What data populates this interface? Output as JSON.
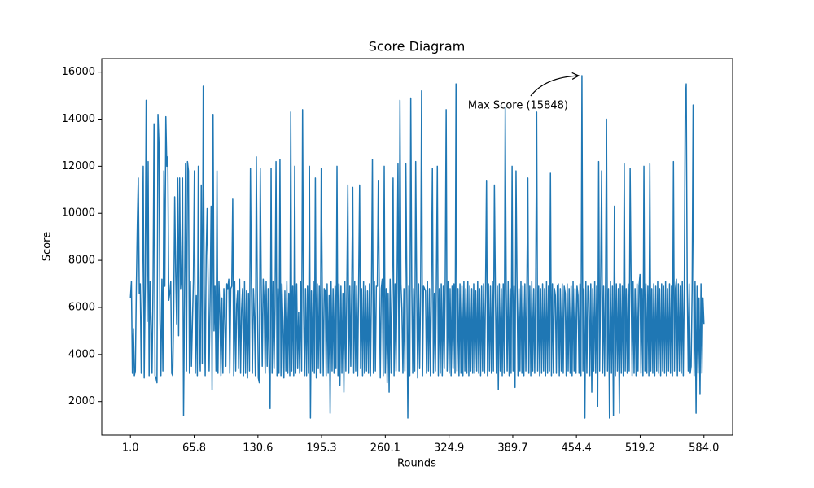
{
  "chart_data": {
    "type": "line",
    "title": "Score Diagram",
    "x_label": "Rounds",
    "y_label": "Score",
    "color": "#1f77b4",
    "x": [
      1,
      2,
      3,
      4,
      5,
      6,
      7,
      8,
      9,
      10,
      11,
      12,
      13,
      14,
      15,
      16,
      17,
      18,
      19,
      20,
      21,
      22,
      23,
      24,
      25,
      26,
      27,
      28,
      29,
      30,
      31,
      32,
      33,
      34,
      35,
      36,
      37,
      38,
      39,
      40,
      41,
      42,
      43,
      44,
      45,
      46,
      47,
      48,
      49,
      50,
      51,
      52,
      53,
      54,
      55,
      56,
      57,
      58,
      59,
      60,
      61,
      62,
      63,
      64,
      65,
      66,
      67,
      68,
      69,
      70,
      71,
      72,
      73,
      74,
      75,
      76,
      77,
      78,
      79,
      80,
      81,
      82,
      83,
      84,
      85,
      86,
      87,
      88,
      89,
      90,
      91,
      92,
      93,
      94,
      95,
      96,
      97,
      98,
      99,
      100,
      101,
      102,
      103,
      104,
      105,
      106,
      107,
      108,
      109,
      110,
      111,
      112,
      113,
      114,
      115,
      116,
      117,
      118,
      119,
      120,
      121,
      122,
      123,
      124,
      125,
      126,
      127,
      128,
      129,
      130,
      131,
      132,
      133,
      134,
      135,
      136,
      137,
      138,
      139,
      140,
      141,
      142,
      143,
      144,
      145,
      146,
      147,
      148,
      149,
      150,
      151,
      152,
      153,
      154,
      155,
      156,
      157,
      158,
      159,
      160,
      161,
      162,
      163,
      164,
      165,
      166,
      167,
      168,
      169,
      170,
      171,
      172,
      173,
      174,
      175,
      176,
      177,
      178,
      179,
      180,
      181,
      182,
      183,
      184,
      185,
      186,
      187,
      188,
      189,
      190,
      191,
      192,
      193,
      194,
      195,
      196,
      197,
      198,
      199,
      200,
      201,
      202,
      203,
      204,
      205,
      206,
      207,
      208,
      209,
      210,
      211,
      212,
      213,
      214,
      215,
      216,
      217,
      218,
      219,
      220,
      221,
      222,
      223,
      224,
      225,
      226,
      227,
      228,
      229,
      230,
      231,
      232,
      233,
      234,
      235,
      236,
      237,
      238,
      239,
      240,
      241,
      242,
      243,
      244,
      245,
      246,
      247,
      248,
      249,
      250,
      251,
      252,
      253,
      254,
      255,
      256,
      257,
      258,
      259,
      260,
      261,
      262,
      263,
      264,
      265,
      266,
      267,
      268,
      269,
      270,
      271,
      272,
      273,
      274,
      275,
      276,
      277,
      278,
      279,
      280,
      281,
      282,
      283,
      284,
      285,
      286,
      287,
      288,
      289,
      290,
      291,
      292,
      293,
      294,
      295,
      296,
      297,
      298,
      299,
      300,
      301,
      302,
      303,
      304,
      305,
      306,
      307,
      308,
      309,
      310,
      311,
      312,
      313,
      314,
      315,
      316,
      317,
      318,
      319,
      320,
      321,
      322,
      323,
      324,
      325,
      326,
      327,
      328,
      329,
      330,
      331,
      332,
      333,
      334,
      335,
      336,
      337,
      338,
      339,
      340,
      341,
      342,
      343,
      344,
      345,
      346,
      347,
      348,
      349,
      350,
      351,
      352,
      353,
      354,
      355,
      356,
      357,
      358,
      359,
      360,
      361,
      362,
      363,
      364,
      365,
      366,
      367,
      368,
      369,
      370,
      371,
      372,
      373,
      374,
      375,
      376,
      377,
      378,
      379,
      380,
      381,
      382,
      383,
      384,
      385,
      386,
      387,
      388,
      389,
      390,
      391,
      392,
      393,
      394,
      395,
      396,
      397,
      398,
      399,
      400,
      401,
      402,
      403,
      404,
      405,
      406,
      407,
      408,
      409,
      410,
      411,
      412,
      413,
      414,
      415,
      416,
      417,
      418,
      419,
      420,
      421,
      422,
      423,
      424,
      425,
      426,
      427,
      428,
      429,
      430,
      431,
      432,
      433,
      434,
      435,
      436,
      437,
      438,
      439,
      440,
      441,
      442,
      443,
      444,
      445,
      446,
      447,
      448,
      449,
      450,
      451,
      452,
      453,
      454,
      455,
      456,
      457,
      458,
      459,
      460,
      461,
      462,
      463,
      464,
      465,
      466,
      467,
      468,
      469,
      470,
      471,
      472,
      473,
      474,
      475,
      476,
      477,
      478,
      479,
      480,
      481,
      482,
      483,
      484,
      485,
      486,
      487,
      488,
      489,
      490,
      491,
      492,
      493,
      494,
      495,
      496,
      497,
      498,
      499,
      500,
      501,
      502,
      503,
      504,
      505,
      506,
      507,
      508,
      509,
      510,
      511,
      512,
      513,
      514,
      515,
      516,
      517,
      518,
      519,
      520,
      521,
      522,
      523,
      524,
      525,
      526,
      527,
      528,
      529,
      530,
      531,
      532,
      533,
      534,
      535,
      536,
      537,
      538,
      539,
      540,
      541,
      542,
      543,
      544,
      545,
      546,
      547,
      548,
      549,
      550,
      551,
      552,
      553,
      554,
      555,
      556,
      557,
      558,
      559,
      560,
      561,
      562,
      563,
      564,
      565,
      566,
      567,
      568,
      569,
      570,
      571,
      572,
      573,
      574,
      575,
      576,
      577,
      578,
      579,
      580,
      581,
      582,
      583,
      584
    ],
    "values": [
      6400,
      7100,
      3200,
      5100,
      3100,
      3300,
      6800,
      9500,
      11500,
      6600,
      7000,
      3200,
      7000,
      12000,
      3000,
      6900,
      14800,
      5400,
      12200,
      3100,
      7100,
      5300,
      3200,
      7000,
      13800,
      3100,
      3000,
      2800,
      14200,
      13000,
      5500,
      3100,
      7200,
      3300,
      11800,
      6900,
      14100,
      12000,
      12400,
      6300,
      6600,
      7100,
      3200,
      3100,
      5800,
      10700,
      7500,
      5300,
      11500,
      4800,
      11500,
      6800,
      7400,
      11500,
      1400,
      6200,
      12100,
      3300,
      12200,
      11800,
      3200,
      7100,
      3500,
      5300,
      7100,
      11800,
      3200,
      6500,
      3100,
      12000,
      4800,
      3300,
      11200,
      3600,
      15400,
      6900,
      3100,
      8200,
      10200,
      7000,
      3300,
      6300,
      10300,
      2500,
      14200,
      5000,
      6900,
      3300,
      11800,
      3200,
      7100,
      5700,
      3100,
      6400,
      3200,
      6800,
      5500,
      3500,
      7000,
      6800,
      7200,
      3200,
      6800,
      6900,
      10600,
      3100,
      7100,
      3300,
      6100,
      6700,
      3400,
      7200,
      3200,
      5900,
      6800,
      3100,
      7100,
      3200,
      6700,
      3000,
      6600,
      3300,
      11900,
      7000,
      3200,
      6800,
      5600,
      3100,
      12400,
      6700,
      3000,
      2800,
      11900,
      6900,
      3500,
      7200,
      6200,
      3200,
      7100,
      3500,
      6800,
      3300,
      1700,
      11900,
      3200,
      7100,
      3400,
      6000,
      12200,
      3100,
      6800,
      3200,
      12300,
      3100,
      7000,
      5400,
      3000,
      6700,
      3300,
      7100,
      3200,
      6600,
      3100,
      14300,
      3300,
      6900,
      3100,
      12000,
      3200,
      7000,
      3400,
      5800,
      3200,
      7100,
      3300,
      14400,
      6000,
      3100,
      6800,
      3100,
      6900,
      3200,
      12000,
      1300,
      6700,
      3300,
      7100,
      3200,
      11500,
      3000,
      7000,
      3400,
      6900,
      3200,
      11900,
      6900,
      3100,
      6800,
      6700,
      3100,
      7000,
      3200,
      6500,
      1500,
      7100,
      3300,
      6800,
      3200,
      6900,
      3400,
      12000,
      3100,
      7000,
      2700,
      6900,
      3200,
      6600,
      2400,
      7100,
      3300,
      6800,
      11200,
      3200,
      6900,
      3500,
      7000,
      11100,
      3200,
      7100,
      3300,
      6900,
      3100,
      7000,
      11200,
      3400,
      6800,
      3100,
      7100,
      3200,
      6900,
      3300,
      6700,
      3200,
      7000,
      3100,
      6800,
      12300,
      3200,
      7100,
      3300,
      6900,
      6900,
      11400,
      6700,
      3000,
      6800,
      7200,
      3100,
      12000,
      3200,
      6800,
      2800,
      6600,
      2400,
      7200,
      3200,
      6900,
      11500,
      3100,
      7000,
      3300,
      6800,
      12100,
      3300,
      14800,
      7000,
      5900,
      3200,
      6800,
      3300,
      12100,
      7000,
      1300,
      6900,
      3100,
      14900,
      7100,
      3200,
      6800,
      3300,
      12200,
      6800,
      3000,
      7000,
      3400,
      6600,
      15200,
      3100,
      6900,
      6800,
      6700,
      3200,
      7100,
      3300,
      6800,
      3100,
      6900,
      11900,
      3200,
      6600,
      3300,
      7000,
      12000,
      3100,
      6800,
      3200,
      7000,
      3100,
      6900,
      3400,
      6900,
      14400,
      3300,
      7100,
      3200,
      6800,
      3100,
      6900,
      3400,
      7000,
      3200,
      15500,
      3300,
      6800,
      3100,
      7000,
      3200,
      6900,
      3100,
      7100,
      3300,
      6800,
      3200,
      7100,
      3100,
      6900,
      3300,
      6800,
      3200,
      7000,
      3200,
      6700,
      3300,
      7100,
      3200,
      6800,
      3100,
      6900,
      3300,
      7000,
      3200,
      6800,
      11400,
      3100,
      7000,
      3300,
      6900,
      3200,
      7100,
      3300,
      11200,
      6800,
      3200,
      6900,
      2500,
      7000,
      3300,
      6800,
      3100,
      7000,
      3200,
      14500,
      6900,
      3300,
      7100,
      3100,
      6800,
      3200,
      12000,
      3300,
      6900,
      2600,
      11800,
      7000,
      3100,
      6800,
      3300,
      7100,
      3200,
      6900,
      3100,
      7000,
      3300,
      6800,
      11500,
      3200,
      6900,
      3100,
      7100,
      3300,
      6800,
      3200,
      7000,
      14300,
      3300,
      6900,
      3100,
      6800,
      3200,
      7000,
      3300,
      6800,
      3100,
      7100,
      3200,
      6900,
      3300,
      11700,
      3100,
      7000,
      3200,
      6800,
      6500,
      3200,
      6900,
      7000,
      3100,
      6800,
      3300,
      7000,
      3200,
      6900,
      6600,
      3100,
      7000,
      3300,
      6800,
      3200,
      6900,
      3100,
      7100,
      3300,
      6800,
      3200,
      6900,
      6500,
      3200,
      7000,
      3100,
      15848,
      3300,
      6800,
      1300,
      7100,
      3200,
      6900,
      6700,
      3100,
      7000,
      2400,
      6800,
      3300,
      7100,
      3200,
      6900,
      1800,
      12200,
      3300,
      7000,
      11800,
      3200,
      6900,
      3100,
      7000,
      14000,
      3300,
      6800,
      1300,
      7100,
      3200,
      6900,
      1400,
      10300,
      3100,
      7000,
      3300,
      6800,
      1500,
      7000,
      3200,
      6900,
      3100,
      12100,
      3300,
      6800,
      3200,
      7000,
      3300,
      11900,
      6900,
      3100,
      7100,
      3200,
      6800,
      3100,
      7000,
      3300,
      6900,
      7400,
      3200,
      6800,
      3100,
      12000,
      3300,
      7000,
      3200,
      6900,
      3100,
      12100,
      3300,
      6800,
      3200,
      7000,
      3100,
      6900,
      3300,
      7100,
      3200,
      6800,
      3100,
      7000,
      3300,
      6900,
      3200,
      7100,
      3100,
      6800,
      3300,
      7000,
      3200,
      6900,
      3100,
      12200,
      3300,
      6800,
      7200,
      3100,
      7000,
      3300,
      6900,
      3200,
      7100,
      3100,
      6800,
      14700,
      15500,
      6900,
      3300,
      7000,
      3200,
      3500,
      6800,
      14600,
      3100,
      7100,
      1500,
      6900,
      3200,
      6400,
      2300,
      7000,
      3200,
      6400,
      5300
    ],
    "xlim": [
      -28.15,
      613.15
    ],
    "xticks": [
      {
        "value": 1,
        "label": "1.0"
      },
      65.8,
      130.6,
      195.3,
      260.1,
      324.9,
      389.7,
      454.4,
      519.2,
      {
        "value": 584,
        "label": "584.0"
      }
    ],
    "ylim": [
      573,
      16575
    ],
    "yticks": [
      2000,
      4000,
      6000,
      8000,
      10000,
      12000,
      14000,
      16000
    ],
    "grid": false,
    "annotation": {
      "text": "Max Score (15848)",
      "x": 460,
      "y": 15848
    }
  }
}
